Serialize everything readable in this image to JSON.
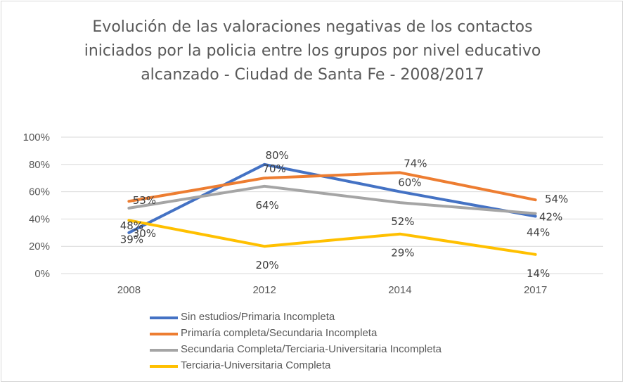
{
  "chart_data": {
    "type": "line",
    "title_lines": [
      "Evolución de las valoraciones negativas de los contactos",
      "iniciados por la policia entre los grupos por nivel educativo",
      "alcanzado - Ciudad de Santa Fe - 2008/2017"
    ],
    "categories": [
      "2008",
      "2012",
      "2014",
      "2017"
    ],
    "ylim": [
      0,
      100
    ],
    "yticks": [
      "0%",
      "20%",
      "40%",
      "60%",
      "80%",
      "100%"
    ],
    "grid": true,
    "legend_position": "bottom",
    "series": [
      {
        "name": "Sin estudios/Primaria Incompleta",
        "values": [
          30,
          80,
          60,
          42
        ],
        "labels": [
          "30%",
          "80%",
          "60%",
          "42%"
        ],
        "color": "#4472C4"
      },
      {
        "name": "Primaría completa/Secundaria Incompleta",
        "values": [
          53,
          70,
          74,
          54
        ],
        "labels": [
          "53%",
          "70%",
          "74%",
          "54%"
        ],
        "color": "#ED7D31"
      },
      {
        "name": "Secundaria Completa/Terciaria-Universitaria Incompleta",
        "values": [
          48,
          64,
          52,
          44
        ],
        "labels": [
          "48%",
          "64%",
          "52%",
          "44%"
        ],
        "color": "#A5A5A5"
      },
      {
        "name": "Terciaria-Universitaria Completa",
        "values": [
          39,
          20,
          29,
          14
        ],
        "labels": [
          "39%",
          "20%",
          "29%",
          "14%"
        ],
        "color": "#FFC000"
      }
    ]
  }
}
